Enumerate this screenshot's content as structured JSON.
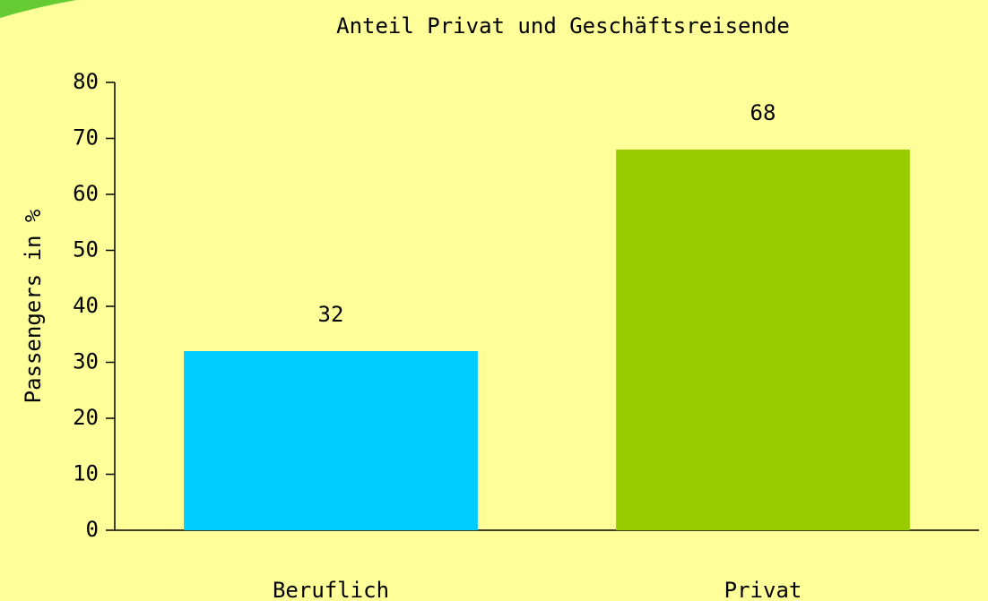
{
  "chart_data": {
    "type": "bar",
    "title": "Anteil Privat und Geschäftsreisende",
    "y_label": "Passengers in %",
    "categories": [
      "Beruflich",
      "Privat"
    ],
    "values": [
      32,
      68
    ],
    "colors": [
      "#00ccff",
      "#99cc00"
    ],
    "ylim": [
      0,
      80
    ],
    "yticks": [
      0,
      10,
      20,
      30,
      40,
      50,
      60,
      70,
      80
    ],
    "grid": false
  }
}
